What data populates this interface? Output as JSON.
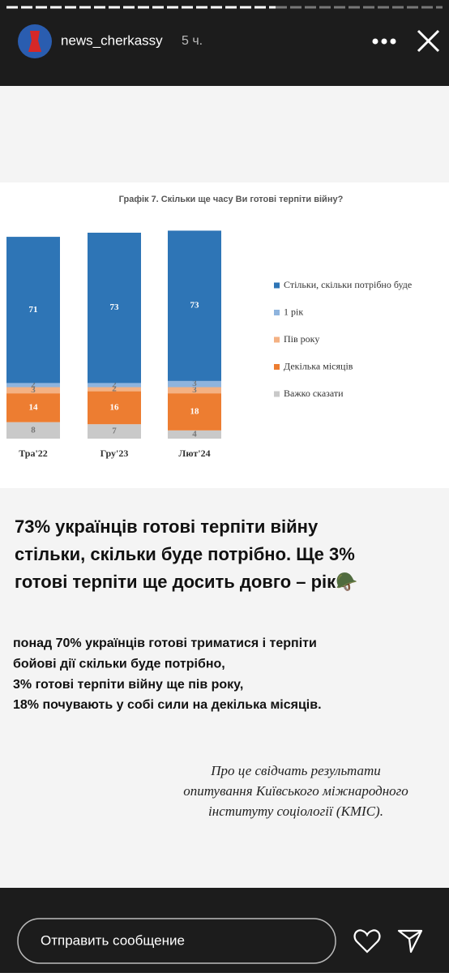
{
  "header": {
    "username": "news_cherkassy",
    "time": "5 ч."
  },
  "chart_data": {
    "type": "bar",
    "stacked": true,
    "title": "Графік 7. Скільки ще часу Ви готові терпіти війну?",
    "categories": [
      "Тра'22",
      "Гру'23",
      "Лют'24"
    ],
    "series": [
      {
        "name": "Стільки, скільки потрібно буде",
        "color": "#2e75b6",
        "values": [
          71,
          73,
          73
        ]
      },
      {
        "name": "1 рік",
        "color": "#8fb4de",
        "values": [
          2,
          2,
          3
        ]
      },
      {
        "name": "Пів року",
        "color": "#f4b183",
        "values": [
          3,
          2,
          3
        ]
      },
      {
        "name": "Декілька місяців",
        "color": "#ed7d31",
        "values": [
          14,
          16,
          18
        ]
      },
      {
        "name": "Важко сказати",
        "color": "#c9c9c9",
        "values": [
          8,
          7,
          4
        ]
      }
    ],
    "legend": "right"
  },
  "post": {
    "heading": [
      "73% українців готові терпіти війну",
      "стільки, скільки буде потрібно. Ще 3%",
      "готові терпіти ще досить довго – рік🪖"
    ],
    "body": [
      "понад 70% українців готові триматися і терпіти",
      "бойові дії скільки буде потрібно,",
      "3% готові терпіти війну ще пів року,",
      "18% почувають у собі сили на декілька місяців."
    ],
    "source": [
      "Про це свідчать результати",
      "опитування Київського міжнародного",
      "інституту соціології (КМІС)."
    ]
  },
  "footer": {
    "placeholder": "Отправить сообщение"
  }
}
